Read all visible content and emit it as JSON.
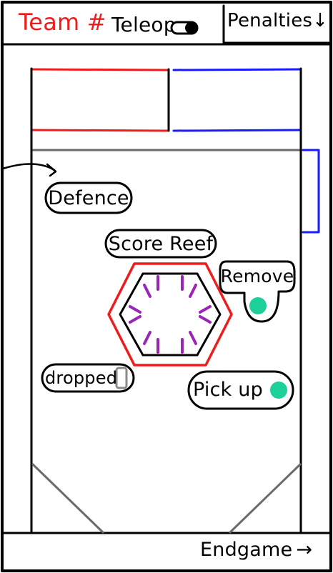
{
  "header": {
    "team_label": "Team #",
    "mode_label": "Teleop",
    "penalties_label": "Penalties",
    "penalties_arrow": "↓"
  },
  "controls": {
    "defence_label": "Defence",
    "score_reef_label": "Score Reef",
    "remove_label": "Remove",
    "dropped_label": "dropped",
    "pick_up_label": "Pick up"
  },
  "footer": {
    "endgame_label": "Endgame",
    "endgame_arrow": "→"
  },
  "colors": {
    "red": "#ee1c1c",
    "blue": "#1a1aff",
    "purple": "#9b26b6",
    "teal": "#1ccf9b",
    "gray": "#6b6b6b"
  }
}
